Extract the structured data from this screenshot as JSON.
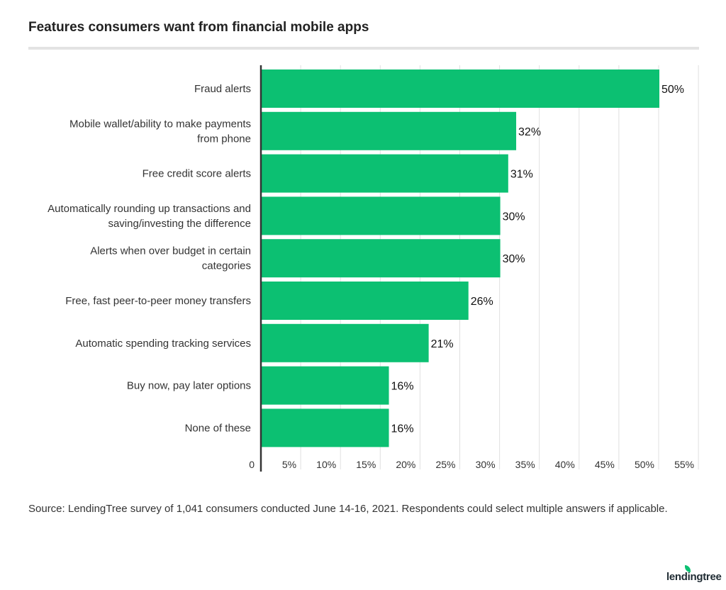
{
  "chart_data": {
    "type": "bar",
    "orientation": "horizontal",
    "title": "Features consumers want from financial mobile apps",
    "categories": [
      [
        "Fraud alerts"
      ],
      [
        "Mobile wallet/ability to make payments",
        "from phone"
      ],
      [
        "Free credit score alerts"
      ],
      [
        "Automatically rounding up transactions and",
        "saving/investing the difference"
      ],
      [
        "Alerts when over budget in certain",
        "categories"
      ],
      [
        "Free, fast peer-to-peer money transfers"
      ],
      [
        "Automatic spending tracking services"
      ],
      [
        "Buy now, pay later options"
      ],
      [
        "None of these"
      ]
    ],
    "values": [
      50,
      32,
      31,
      30,
      30,
      26,
      21,
      16,
      16
    ],
    "data_labels": [
      "50%",
      "32%",
      "31%",
      "30%",
      "30%",
      "26%",
      "21%",
      "16%",
      "16%"
    ],
    "xlim": [
      0,
      55
    ],
    "x_ticks": [
      "0",
      "5%",
      "10%",
      "15%",
      "20%",
      "25%",
      "30%",
      "35%",
      "40%",
      "45%",
      "50%",
      "55%"
    ],
    "grid": true,
    "bar_color": "#0cc072"
  },
  "source": "Source: LendingTree survey of 1,041 consumers conducted June 14-16, 2021. Respondents could select multiple answers if applicable.",
  "logo": "lendingtree"
}
